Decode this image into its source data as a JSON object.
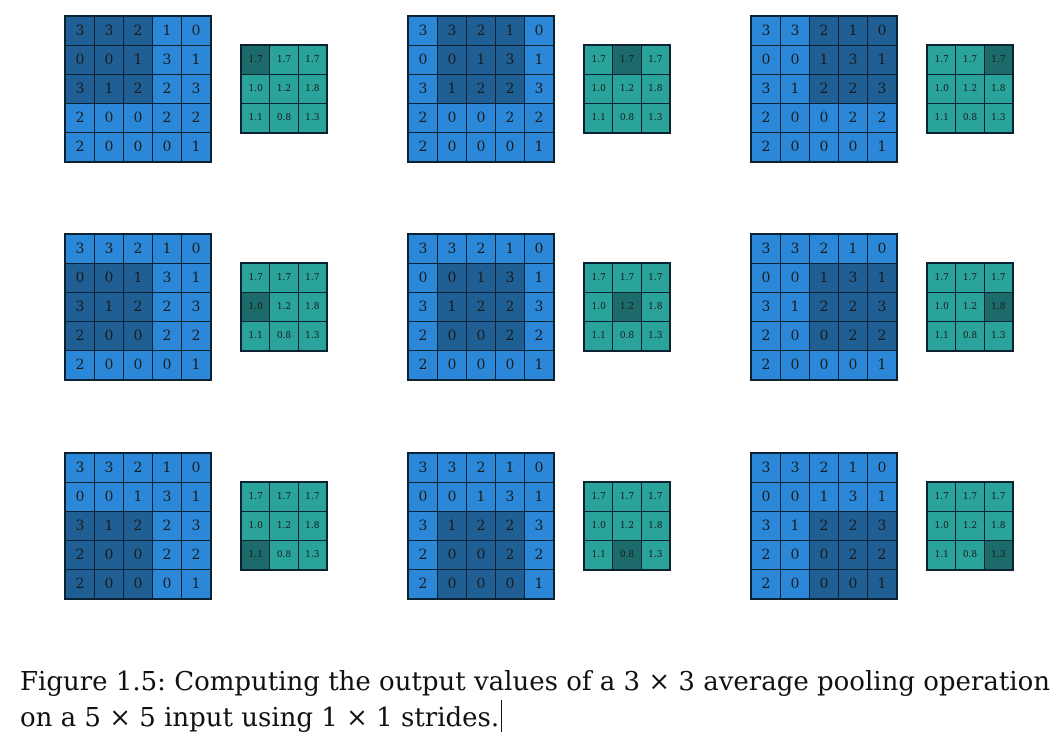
{
  "input_matrix": [
    [
      "3",
      "3",
      "2",
      "1",
      "0"
    ],
    [
      "0",
      "0",
      "1",
      "3",
      "1"
    ],
    [
      "3",
      "1",
      "2",
      "2",
      "3"
    ],
    [
      "2",
      "0",
      "0",
      "2",
      "2"
    ],
    [
      "2",
      "0",
      "0",
      "0",
      "1"
    ]
  ],
  "output_matrix": [
    [
      "1.7",
      "1.7",
      "1.7"
    ],
    [
      "1.0",
      "1.2",
      "1.8"
    ],
    [
      "1.1",
      "0.8",
      "1.3"
    ]
  ],
  "colors": {
    "input_cell": "#2b88d8",
    "input_window": "#1f5f94",
    "output_cell": "#2aa39a",
    "output_current": "#1c6b6a",
    "border": "#0b2233"
  },
  "caption": {
    "text": "Figure 1.5:  Computing the output values of a 3 × 3 average pooling operation on a 5 × 5 input using 1 × 1 strides."
  }
}
